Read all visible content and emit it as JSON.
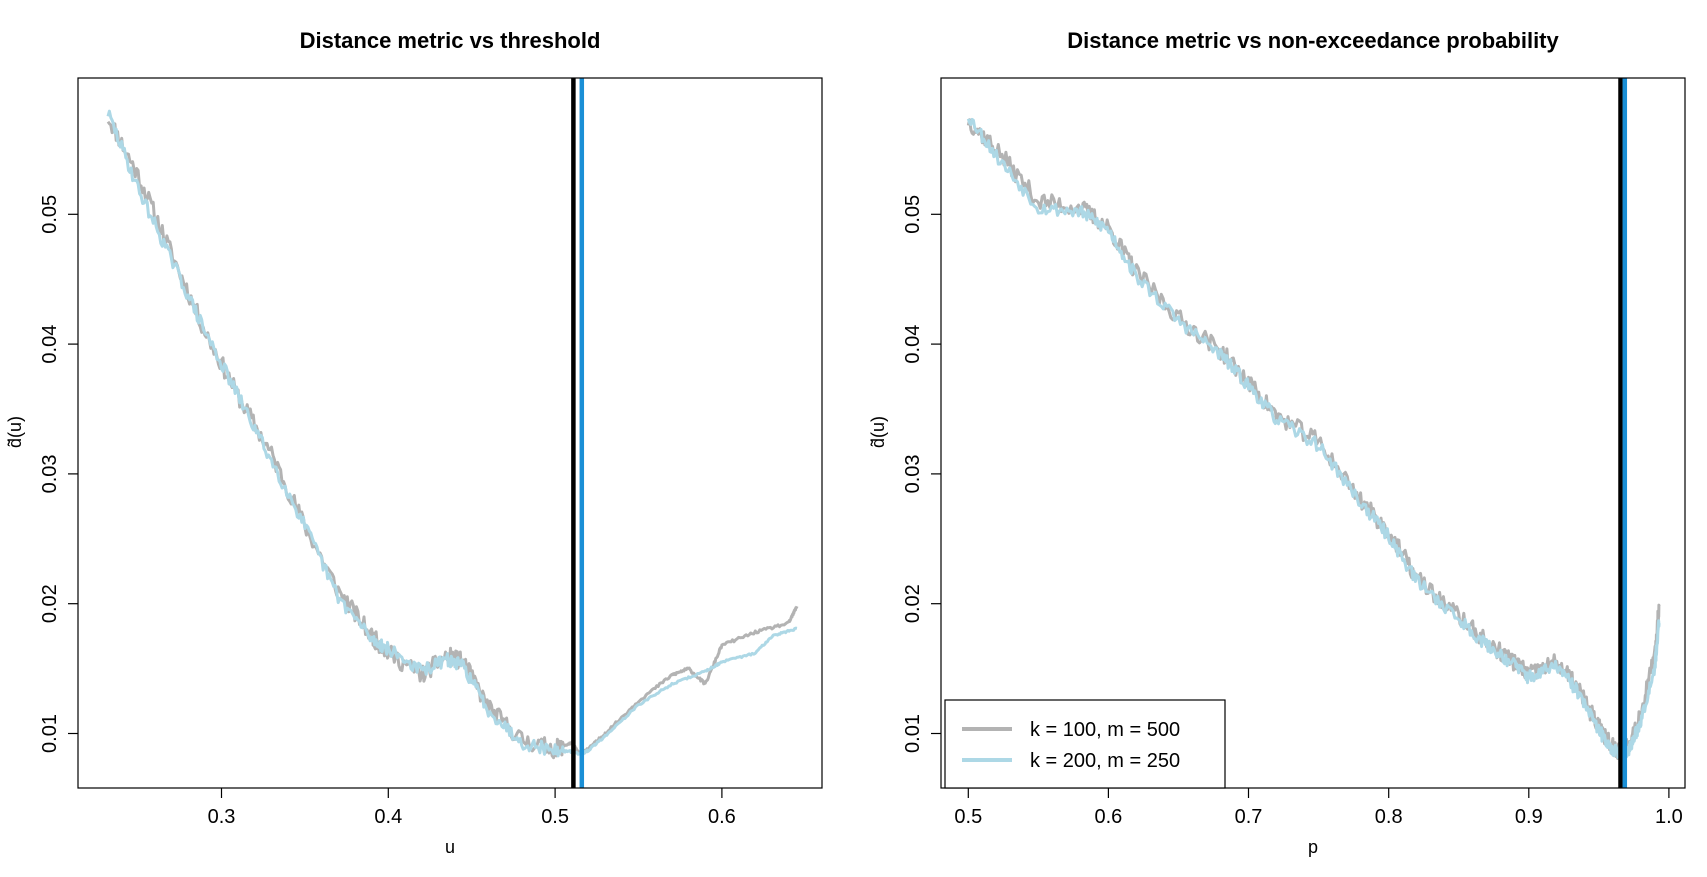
{
  "colors": {
    "background": "#ffffff",
    "series_k100": "#b3b3b3",
    "series_k200": "#add8e6",
    "vline_black": "#000000",
    "vline_blue": "#1a8fd6"
  },
  "legend": {
    "items": [
      "k = 100, m = 500",
      "k = 200, m = 250"
    ],
    "placement": "bottom-left of right panel"
  },
  "chart_data": [
    {
      "type": "line",
      "title": "Distance metric vs threshold",
      "xlabel": "u",
      "ylabel": "d̃(u)",
      "xlim": [
        0.214,
        0.66
      ],
      "ylim": [
        0.0058,
        0.0605
      ],
      "xticks": [
        0.3,
        0.4,
        0.5,
        0.6
      ],
      "xtick_labels": [
        "0.3",
        "0.4",
        "0.5",
        "0.6"
      ],
      "yticks": [
        0.01,
        0.02,
        0.03,
        0.04,
        0.05
      ],
      "ytick_labels": [
        "0.01",
        "0.02",
        "0.03",
        "0.04",
        "0.05"
      ],
      "vlines": [
        {
          "x": 0.511,
          "color": "#000000"
        },
        {
          "x": 0.516,
          "color": "#1a8fd6"
        }
      ],
      "series": [
        {
          "name": "k = 100, m = 500",
          "color": "#b3b3b3",
          "noise": 0.0007,
          "seed": 11,
          "x": [
            0.232,
            0.25,
            0.27,
            0.29,
            0.31,
            0.33,
            0.35,
            0.37,
            0.39,
            0.4,
            0.42,
            0.435,
            0.445,
            0.46,
            0.48,
            0.5,
            0.51,
            0.514,
            0.52,
            0.53,
            0.55,
            0.57,
            0.58,
            0.59,
            0.6,
            0.62,
            0.64,
            0.645
          ],
          "y": [
            0.0575,
            0.053,
            0.047,
            0.041,
            0.036,
            0.0315,
            0.026,
            0.021,
            0.0175,
            0.0162,
            0.0145,
            0.016,
            0.0155,
            0.012,
            0.0095,
            0.0088,
            0.0093,
            0.0085,
            0.0088,
            0.01,
            0.0125,
            0.0145,
            0.015,
            0.0138,
            0.0168,
            0.0178,
            0.0185,
            0.0198
          ]
        },
        {
          "name": "k = 200, m = 250",
          "color": "#add8e6",
          "noise": 0.0005,
          "seed": 29,
          "x": [
            0.232,
            0.25,
            0.27,
            0.29,
            0.31,
            0.33,
            0.35,
            0.37,
            0.39,
            0.4,
            0.42,
            0.435,
            0.445,
            0.46,
            0.48,
            0.5,
            0.51,
            0.516,
            0.52,
            0.53,
            0.55,
            0.57,
            0.59,
            0.6,
            0.62,
            0.63,
            0.645
          ],
          "y": [
            0.0578,
            0.052,
            0.0465,
            0.041,
            0.036,
            0.031,
            0.026,
            0.0205,
            0.0173,
            0.0165,
            0.0148,
            0.0157,
            0.0152,
            0.0118,
            0.0093,
            0.0087,
            0.0086,
            0.0084,
            0.0087,
            0.0098,
            0.0122,
            0.0138,
            0.0148,
            0.0155,
            0.0162,
            0.0175,
            0.0181
          ]
        }
      ]
    },
    {
      "type": "line",
      "title": "Distance metric vs non-exceedance probability",
      "xlabel": "p",
      "ylabel": "d̃(u)",
      "xlim": [
        0.4805,
        1.0115
      ],
      "ylim": [
        0.0058,
        0.0605
      ],
      "xticks": [
        0.5,
        0.6,
        0.7,
        0.8,
        0.9,
        1.0
      ],
      "xtick_labels": [
        "0.5",
        "0.6",
        "0.7",
        "0.8",
        "0.9",
        "1.0"
      ],
      "yticks": [
        0.01,
        0.02,
        0.03,
        0.04,
        0.05
      ],
      "ytick_labels": [
        "0.01",
        "0.02",
        "0.03",
        "0.04",
        "0.05"
      ],
      "vlines": [
        {
          "x": 0.9655,
          "color": "#000000"
        },
        {
          "x": 0.9685,
          "color": "#1a8fd6"
        }
      ],
      "series": [
        {
          "name": "k = 100, m = 500",
          "color": "#b3b3b3",
          "noise": 0.0007,
          "seed": 37,
          "x": [
            0.5,
            0.52,
            0.55,
            0.58,
            0.6,
            0.62,
            0.65,
            0.68,
            0.7,
            0.72,
            0.75,
            0.78,
            0.8,
            0.82,
            0.85,
            0.87,
            0.89,
            0.9,
            0.92,
            0.935,
            0.95,
            0.96,
            0.967,
            0.97,
            0.98,
            0.99,
            0.993
          ],
          "y": [
            0.0572,
            0.055,
            0.051,
            0.0505,
            0.049,
            0.0455,
            0.042,
            0.0395,
            0.037,
            0.0345,
            0.0325,
            0.028,
            0.0255,
            0.022,
            0.019,
            0.017,
            0.0155,
            0.0145,
            0.0155,
            0.0135,
            0.0105,
            0.009,
            0.0085,
            0.009,
            0.0115,
            0.016,
            0.0198
          ]
        },
        {
          "name": "k = 200, m = 250",
          "color": "#add8e6",
          "noise": 0.0005,
          "seed": 53,
          "x": [
            0.5,
            0.52,
            0.55,
            0.58,
            0.6,
            0.62,
            0.65,
            0.68,
            0.7,
            0.72,
            0.75,
            0.78,
            0.8,
            0.82,
            0.85,
            0.87,
            0.89,
            0.9,
            0.92,
            0.935,
            0.95,
            0.96,
            0.968,
            0.972,
            0.98,
            0.99,
            0.993
          ],
          "y": [
            0.0576,
            0.0545,
            0.0505,
            0.0502,
            0.0488,
            0.0452,
            0.0418,
            0.0392,
            0.0368,
            0.0342,
            0.0322,
            0.0278,
            0.0252,
            0.0218,
            0.0188,
            0.0168,
            0.0153,
            0.0143,
            0.0152,
            0.0132,
            0.0102,
            0.0088,
            0.0084,
            0.0088,
            0.011,
            0.0152,
            0.0185
          ]
        }
      ]
    }
  ]
}
